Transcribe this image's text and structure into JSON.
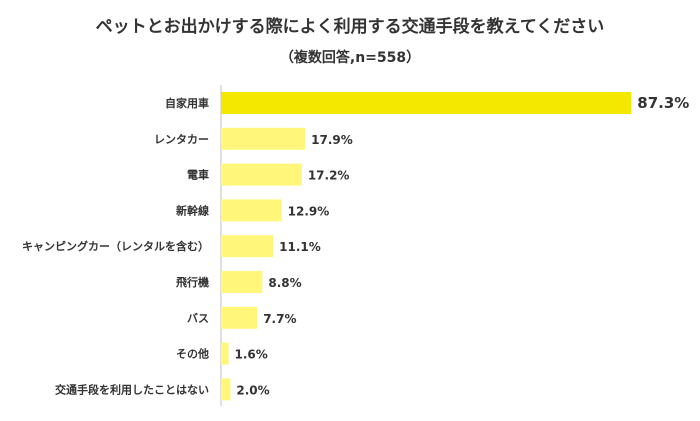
{
  "chart_data": {
    "type": "bar",
    "orientation": "horizontal",
    "title": "ペットとお出かけする際によく利用する交通手段を教えてください",
    "subtitle": "（複数回答,n=558）",
    "categories": [
      "自家用車",
      "レンタカー",
      "電車",
      "新幹線",
      "キャンピングカー（レンタルを含む）",
      "飛行機",
      "バス",
      "その他",
      "交通手段を利用したことはない"
    ],
    "values": [
      87.3,
      17.9,
      17.2,
      12.9,
      11.1,
      8.8,
      7.7,
      1.6,
      2.0
    ],
    "value_labels": [
      "87.3%",
      "17.9%",
      "17.2%",
      "12.9%",
      "11.1%",
      "8.8%",
      "7.7%",
      "1.6%",
      "2.0%"
    ],
    "xlim": [
      0,
      100
    ],
    "grid": false,
    "legend": "none",
    "colors": {
      "highlight": "#f5e800",
      "bar": "#fff67a",
      "axis": "#bfbfbf"
    }
  }
}
